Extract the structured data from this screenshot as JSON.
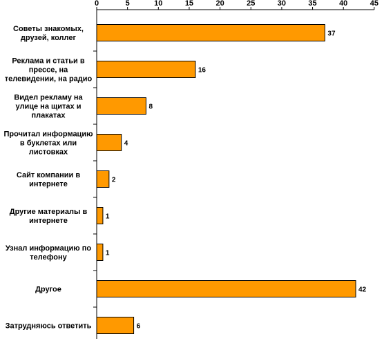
{
  "chart_data": {
    "type": "bar",
    "orientation": "horizontal",
    "categories": [
      [
        "Советы знакомых,",
        "друзей, коллег"
      ],
      [
        "Реклама и статьи в",
        "прессе, на",
        "телевидении, на радио"
      ],
      [
        "Видел рекламу на",
        "улице на щитах и",
        "плакатах"
      ],
      [
        "Прочитал информацию",
        "в буклетах или",
        "листовках"
      ],
      [
        "Сайт компании в",
        "интернете"
      ],
      [
        "Другие материалы в",
        "интернете"
      ],
      [
        "Узнал информацию по",
        "телефону"
      ],
      [
        "Другое"
      ],
      [
        "Затрудняюсь ответить"
      ]
    ],
    "values": [
      37,
      16,
      8,
      4,
      2,
      1,
      1,
      42,
      6
    ],
    "data_labels": [
      "37",
      "16",
      "8",
      "4",
      "2",
      "1",
      "1",
      "42",
      "6"
    ],
    "x_ticks": [
      "0",
      "5",
      "10",
      "15",
      "20",
      "25",
      "30",
      "35",
      "40",
      "45"
    ],
    "xlim": [
      0,
      45
    ],
    "axis_position": "top",
    "grid": false,
    "bar_color": "#FF9900",
    "bar_edge_color": "#000000"
  }
}
